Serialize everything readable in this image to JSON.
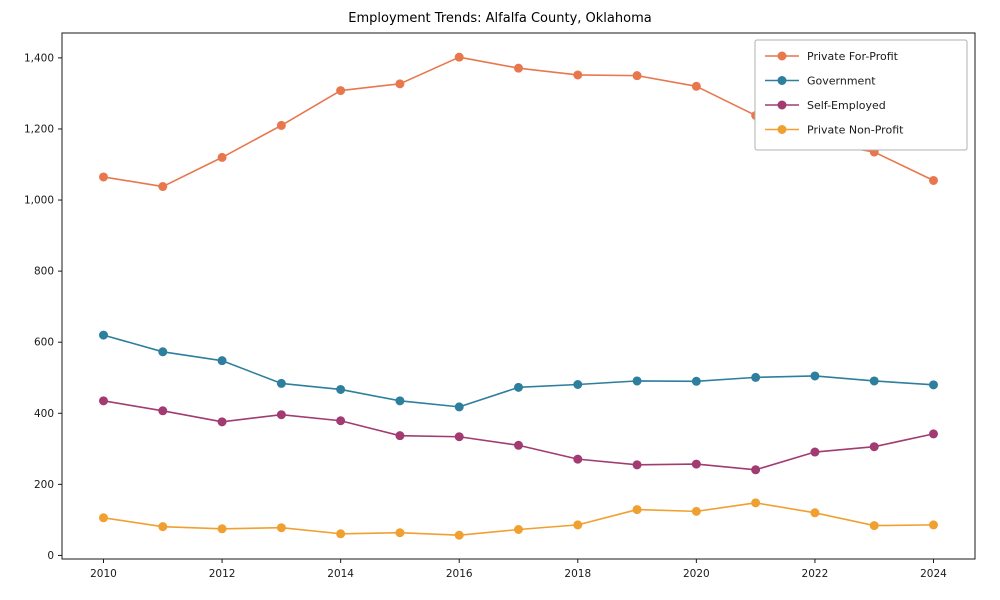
{
  "chart_data": {
    "type": "line",
    "title": "Employment Trends: Alfalfa County, Oklahoma",
    "xlabel": "",
    "ylabel": "",
    "grid": false,
    "legend_position": "upper right",
    "x": [
      2010,
      2011,
      2012,
      2013,
      2014,
      2015,
      2016,
      2017,
      2018,
      2019,
      2020,
      2021,
      2022,
      2023,
      2024
    ],
    "x_ticks": [
      2010,
      2012,
      2014,
      2016,
      2018,
      2020,
      2022,
      2024
    ],
    "y_ticks": [
      0,
      200,
      400,
      600,
      800,
      1000,
      1200,
      1400
    ],
    "xlim": [
      2009.3,
      2024.7
    ],
    "ylim": [
      -10,
      1470
    ],
    "series": [
      {
        "name": "Private For-Profit",
        "color": "#E8774E",
        "values": [
          1065,
          1038,
          1120,
          1210,
          1308,
          1327,
          1402,
          1371,
          1352,
          1350,
          1320,
          1238,
          1165,
          1135,
          1055
        ]
      },
      {
        "name": "Government",
        "color": "#2D7F9D",
        "values": [
          620,
          573,
          548,
          484,
          467,
          435,
          418,
          473,
          481,
          491,
          490,
          501,
          505,
          491,
          480
        ]
      },
      {
        "name": "Self-Employed",
        "color": "#A23B72",
        "values": [
          435,
          407,
          376,
          396,
          379,
          337,
          334,
          310,
          271,
          255,
          257,
          241,
          291,
          306,
          342
        ]
      },
      {
        "name": "Private Non-Profit",
        "color": "#F0A030",
        "values": [
          106,
          81,
          75,
          78,
          61,
          64,
          57,
          73,
          86,
          129,
          124,
          148,
          120,
          84,
          86
        ]
      }
    ]
  }
}
